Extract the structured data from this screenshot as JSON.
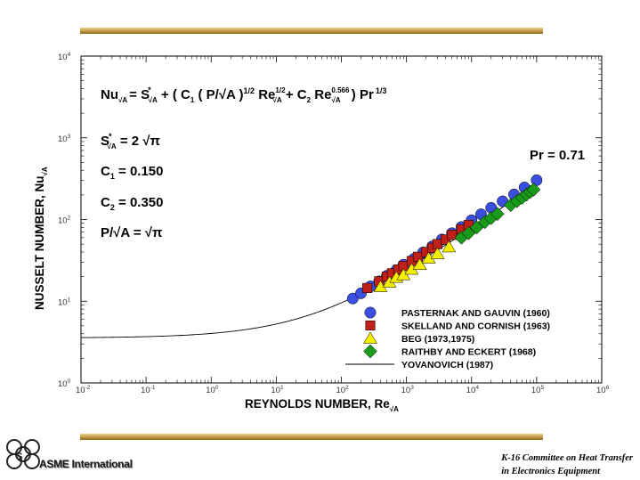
{
  "chart_data": {
    "type": "scatter",
    "xscale": "log",
    "yscale": "log",
    "xlim": [
      0.01,
      1000000
    ],
    "ylim": [
      1,
      10000
    ],
    "x_ticks": [
      {
        "base": "10",
        "exp": "-2"
      },
      {
        "base": "10",
        "exp": "-1"
      },
      {
        "base": "10",
        "exp": "0"
      },
      {
        "base": "10",
        "exp": "1"
      },
      {
        "base": "10",
        "exp": "2"
      },
      {
        "base": "10",
        "exp": "3"
      },
      {
        "base": "10",
        "exp": "4"
      },
      {
        "base": "10",
        "exp": "5"
      },
      {
        "base": "10",
        "exp": "6"
      }
    ],
    "y_ticks": [
      {
        "base": "10",
        "exp": "0"
      },
      {
        "base": "10",
        "exp": "1"
      },
      {
        "base": "10",
        "exp": "2"
      },
      {
        "base": "10",
        "exp": "3"
      },
      {
        "base": "10",
        "exp": "4"
      }
    ],
    "xlabel": "REYNOLDS NUMBER,  Re",
    "xlabel_sub": "√A",
    "ylabel": "NUSSELT NUMBER,  Nu",
    "ylabel_sub": "√A",
    "annotations": {
      "pr": "Pr = 0.71",
      "c1": "C",
      "c1_sub": "1",
      "c1_val": " = 0.150",
      "c2": "C",
      "c2_sub": "2",
      "c2_val": " = 0.350",
      "s_label": "S",
      "s_sup": "*",
      "s_sub": "√A",
      "s_val": " = 2 √π",
      "p_label": "P/√A = √π",
      "eq": {
        "nu": "Nu",
        "nu_sub": "√A",
        "eq1": "= S",
        "s_sup": "*",
        "s_sub": "√A",
        "plus1": "  +  ( C",
        "c1_sub": "1",
        "mid1": " ( P/√A )",
        "half_sup": "1/2",
        "re1": " Re",
        "re1_sup": "1/2",
        "re1_sub": "√A",
        "plus2": " + C",
        "c2_sub": "2",
        "re2": " Re",
        "re2_sup": "0.566",
        "re2_sub": "√A",
        "close": " ) Pr",
        "pr_sup": "1/3"
      }
    },
    "legend_position": "bottom-right",
    "series": [
      {
        "name": "PASTERNAK AND GAUVIN  (1960)",
        "marker": "circle",
        "color": "#3a4fe0",
        "x": [
          150,
          200,
          280,
          380,
          500,
          700,
          900,
          1300,
          1800,
          2500,
          3500,
          5000,
          7000,
          10000,
          14000,
          20000,
          30000,
          45000,
          65000,
          100000
        ],
        "y": [
          10.8,
          12.5,
          15.2,
          17.5,
          20.5,
          24.0,
          28.0,
          33.0,
          39.5,
          47.0,
          57.0,
          68.0,
          81.0,
          98.0,
          116.0,
          139.0,
          167.0,
          203.0,
          247.0,
          303.0
        ]
      },
      {
        "name": "SKELLAND AND CORNISH  (1963)",
        "marker": "square",
        "color": "#c0201a",
        "x": [
          250,
          380,
          500,
          600,
          750,
          900,
          1200,
          1500,
          2000,
          2500,
          3000,
          4000,
          5000,
          7000,
          9000
        ],
        "y": [
          14.5,
          17.5,
          20.0,
          22.0,
          24.5,
          27.0,
          31.0,
          35.0,
          40.0,
          45.0,
          50.0,
          57.0,
          65.0,
          76.0,
          86.0
        ]
      },
      {
        "name": "BEG  (1973,1975)",
        "marker": "triangle",
        "color": "#f4f000",
        "x": [
          400,
          550,
          700,
          900,
          1200,
          1600,
          2200,
          3000,
          4500
        ],
        "y": [
          15.0,
          17.0,
          19.5,
          21.0,
          24.5,
          28.0,
          33.5,
          38.0,
          46.0
        ]
      },
      {
        "name": "RAITHBY AND ECKERT  (1968)",
        "marker": "diamond",
        "color": "#1a9a1a",
        "x": [
          7000,
          9000,
          12000,
          16000,
          20000,
          25000,
          40000,
          50000,
          60000,
          70000,
          80000,
          90000
        ],
        "y": [
          60.0,
          68.0,
          80.0,
          93.0,
          104.0,
          117.0,
          150.0,
          168.0,
          185.0,
          202.0,
          218.0,
          232.0
        ]
      },
      {
        "name": "YOVANOVICH  (1987)",
        "marker": "line",
        "color": "#000000"
      }
    ]
  },
  "footer": {
    "logo_text": "ASME International",
    "committee_line1": "K-16 Committee on Heat Transfer",
    "committee_line2": "in Electronics Equipment"
  }
}
